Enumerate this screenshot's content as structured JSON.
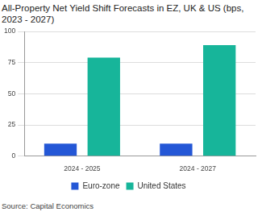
{
  "chart_data": {
    "type": "bar",
    "title": "All-Property Net Yield Shift Forecasts in EZ, UK & US (bps, 2023 - 2027)",
    "source": "Source: Capital Economics",
    "categories": [
      "2024 - 2025",
      "2024 - 2027"
    ],
    "series": [
      {
        "name": "Euro-zone",
        "color": "#2457d6",
        "values": [
          10,
          10
        ]
      },
      {
        "name": "United States",
        "color": "#17b59a",
        "values": [
          79,
          89
        ]
      }
    ],
    "ylim": [
      0,
      100
    ],
    "yticks": [
      0,
      25,
      50,
      75,
      100
    ],
    "grid": true,
    "legend": "bottom"
  }
}
